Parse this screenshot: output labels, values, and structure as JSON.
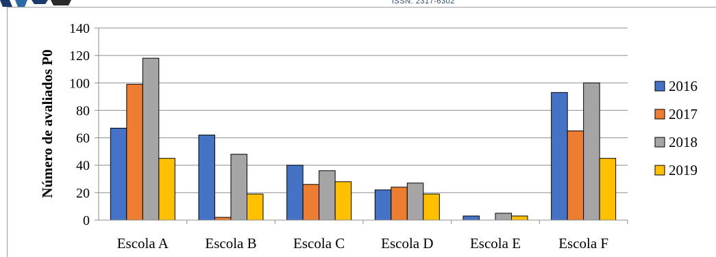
{
  "header": {
    "issn": "ISSN: 2317-6302"
  },
  "chart_data": {
    "type": "bar",
    "title": "",
    "xlabel": "",
    "ylabel": "Número de avaliados P0",
    "categories": [
      "Escola A",
      "Escola B",
      "Escola C",
      "Escola D",
      "Escola E",
      "Escola F"
    ],
    "ylim": [
      0,
      140
    ],
    "yticks": [
      0,
      20,
      40,
      60,
      80,
      100,
      120,
      140
    ],
    "grid": true,
    "legend": "right",
    "series": [
      {
        "name": "2016",
        "color": "#4472c4",
        "values": [
          67,
          62,
          40,
          22,
          3,
          93
        ]
      },
      {
        "name": "2017",
        "color": "#ed7d31",
        "values": [
          99,
          2,
          26,
          24,
          0,
          65
        ]
      },
      {
        "name": "2018",
        "color": "#a5a5a5",
        "values": [
          118,
          48,
          36,
          27,
          5,
          100
        ]
      },
      {
        "name": "2019",
        "color": "#ffc000",
        "values": [
          45,
          19,
          28,
          19,
          3,
          45
        ]
      }
    ]
  }
}
